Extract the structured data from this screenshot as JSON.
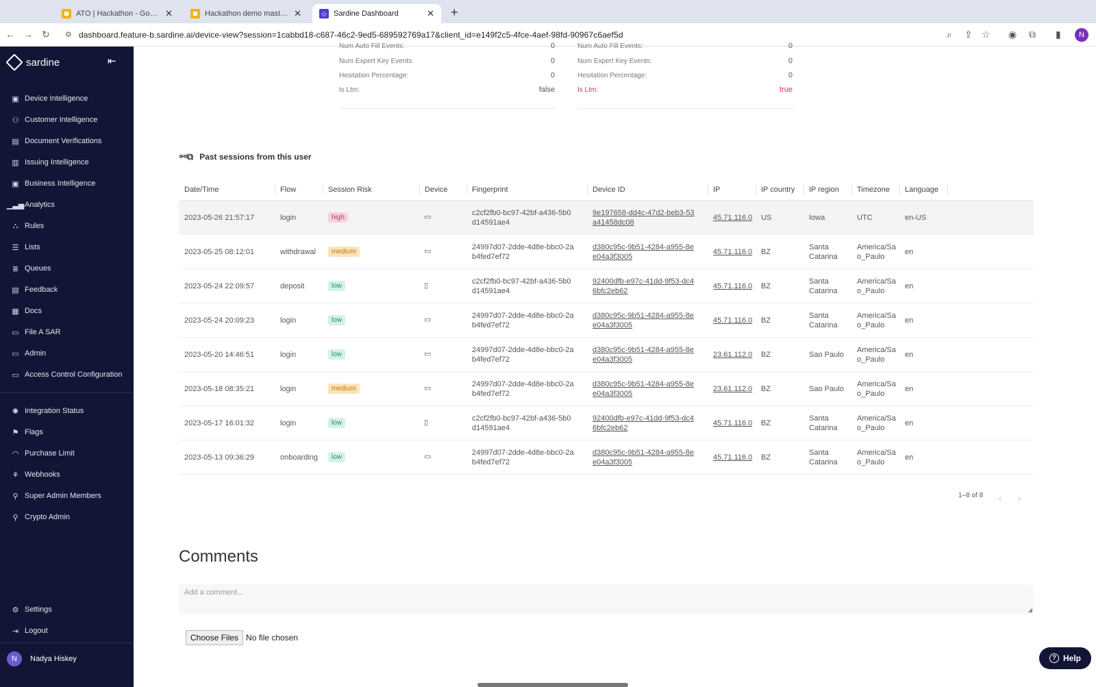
{
  "browser": {
    "tabs": [
      {
        "title": "ATO | Hackathon - Google Sli",
        "icon": "slides-icon"
      },
      {
        "title": "Hackathon demo master dec",
        "icon": "slides-icon"
      },
      {
        "title": "Sardine Dashboard",
        "icon": "sardine-icon"
      }
    ],
    "url": "dashboard.feature-b.sardine.ai/device-view?session=1cabbd18-c687-46c2-9ed5-689592769a17&client_id=e149f2c5-4fce-4aef-98fd-90967c6aef5d",
    "profile_initial": "N"
  },
  "sidebar": {
    "brand": "sardine",
    "items": [
      {
        "label": "Device Intelligence",
        "icon": "device-intelligence-icon"
      },
      {
        "label": "Customer Intelligence",
        "icon": "customer-icon"
      },
      {
        "label": "Document Verifications",
        "icon": "document-icon"
      },
      {
        "label": "Issuing Intelligence",
        "icon": "issuing-icon"
      },
      {
        "label": "Business Intelligence",
        "icon": "business-icon"
      },
      {
        "label": "Analytics",
        "icon": "analytics-icon"
      },
      {
        "label": "Rules",
        "icon": "rules-icon"
      },
      {
        "label": "Lists",
        "icon": "lists-icon"
      },
      {
        "label": "Queues",
        "icon": "queues-icon"
      },
      {
        "label": "Feedback",
        "icon": "feedback-icon"
      },
      {
        "label": "Docs",
        "icon": "docs-icon"
      },
      {
        "label": "File A SAR",
        "icon": "folder-icon"
      },
      {
        "label": "Admin",
        "icon": "folder-icon"
      },
      {
        "label": "Access Control Configuration",
        "icon": "folder-icon"
      }
    ],
    "items2": [
      {
        "label": "Integration Status",
        "icon": "integration-icon"
      },
      {
        "label": "Flags",
        "icon": "flag-icon"
      },
      {
        "label": "Purchase Limit",
        "icon": "gauge-icon"
      },
      {
        "label": "Webhooks",
        "icon": "webhook-icon"
      },
      {
        "label": "Super Admin Members",
        "icon": "user-icon"
      },
      {
        "label": "Crypto Admin",
        "icon": "user-icon"
      }
    ],
    "bottom": [
      {
        "label": "Settings",
        "icon": "gear-icon"
      },
      {
        "label": "Logout",
        "icon": "logout-icon"
      }
    ],
    "user": {
      "initial": "N",
      "name": "Nadya Hiskey"
    }
  },
  "behavior": {
    "left": [
      {
        "label": "Num Auto Fill Events:",
        "value": "0"
      },
      {
        "label": "Num Expert Key Events:",
        "value": "0"
      },
      {
        "label": "Hesitation Percentage:",
        "value": "0"
      },
      {
        "label": "Is Ltm:",
        "value": "false"
      }
    ],
    "right": [
      {
        "label": "Num Auto Fill Events:",
        "value": "0"
      },
      {
        "label": "Num Expert Key Events:",
        "value": "0"
      },
      {
        "label": "Hesitation Percentage:",
        "value": "0"
      },
      {
        "label": "Is Ltm:",
        "value": "true"
      }
    ]
  },
  "sessions": {
    "title": "Past sessions from this user",
    "columns": [
      "Date/Time",
      "Flow",
      "Session Risk",
      "Device",
      "Fingerprint",
      "Device ID",
      "IP",
      "IP country",
      "IP region",
      "Timezone",
      "Language"
    ],
    "rows": [
      {
        "datetime": "2023-05-26 21:57:17",
        "flow": "login",
        "risk": "high",
        "device": "desktop",
        "fingerprint": "c2cf2fb0-bc97-42bf-a436-5b0d14591ae4",
        "device_id": "9e197658-dd4c-47d2-beb3-53a41458dc08",
        "ip": "45.71.116.0",
        "country": "US",
        "region": "Iowa",
        "timezone": "UTC",
        "language": "en-US"
      },
      {
        "datetime": "2023-05-25 08:12:01",
        "flow": "withdrawal",
        "risk": "medium",
        "device": "desktop",
        "fingerprint": "24997d07-2dde-4d8e-bbc0-2ab4fed7ef72",
        "device_id": "d380c95c-9b51-4284-a955-8ee04a3f3005",
        "ip": "45.71.116.0",
        "country": "BZ",
        "region": "Santa Catarina",
        "timezone": "America/Sao_Paulo",
        "language": "en"
      },
      {
        "datetime": "2023-05-24 22:09:57",
        "flow": "deposit",
        "risk": "low",
        "device": "mobile",
        "fingerprint": "c2cf2fb0-bc97-42bf-a436-5b0d14591ae4",
        "device_id": "92400dfb-e97c-41dd-9f53-dc46bfc2eb62",
        "ip": "45.71.116.0",
        "country": "BZ",
        "region": "Santa Catarina",
        "timezone": "America/Sao_Paulo",
        "language": "en"
      },
      {
        "datetime": "2023-05-24 20:09:23",
        "flow": "login",
        "risk": "low",
        "device": "desktop",
        "fingerprint": "24997d07-2dde-4d8e-bbc0-2ab4fed7ef72",
        "device_id": "d380c95c-9b51-4284-a955-8ee04a3f3005",
        "ip": "45.71.116.0",
        "country": "BZ",
        "region": "Santa Catarina",
        "timezone": "America/Sao_Paulo",
        "language": "en"
      },
      {
        "datetime": "2023-05-20 14:46:51",
        "flow": "login",
        "risk": "low",
        "device": "desktop",
        "fingerprint": "24997d07-2dde-4d8e-bbc0-2ab4fed7ef72",
        "device_id": "d380c95c-9b51-4284-a955-8ee04a3f3005",
        "ip": "23.61.112.0",
        "country": "BZ",
        "region": "Sao Paulo",
        "timezone": "America/Sao_Paulo",
        "language": "en"
      },
      {
        "datetime": "2023-05-18 08:35:21",
        "flow": "login",
        "risk": "medium",
        "device": "desktop",
        "fingerprint": "24997d07-2dde-4d8e-bbc0-2ab4fed7ef72",
        "device_id": "d380c95c-9b51-4284-a955-8ee04a3f3005",
        "ip": "23.61.112.0",
        "country": "BZ",
        "region": "Sao Paulo",
        "timezone": "America/Sao_Paulo",
        "language": "en"
      },
      {
        "datetime": "2023-05-17 16:01:32",
        "flow": "login",
        "risk": "low",
        "device": "mobile",
        "fingerprint": "c2cf2fb0-bc97-42bf-a436-5b0d14591ae4",
        "device_id": "92400dfb-e97c-41dd-9f53-dc46bfc2eb62",
        "ip": "45.71.116.0",
        "country": "BZ",
        "region": "Santa Catarina",
        "timezone": "America/Sao_Paulo",
        "language": "en"
      },
      {
        "datetime": "2023-05-13 09:36:29",
        "flow": "onboarding",
        "risk": "low",
        "device": "desktop",
        "fingerprint": "24997d07-2dde-4d8e-bbc0-2ab4fed7ef72",
        "device_id": "d380c95c-9b51-4284-a955-8ee04a3f3005",
        "ip": "45.71.116.0",
        "country": "BZ",
        "region": "Santa Catarina",
        "timezone": "America/Sao_Paulo",
        "language": "en"
      }
    ],
    "pagination": "1–8 of 8"
  },
  "comments": {
    "title": "Comments",
    "placeholder": "Add a comment...",
    "choose_files": "Choose Files",
    "no_file": "No file chosen"
  },
  "help_label": "Help",
  "colors": {
    "sidebar_bg": "#121536",
    "high": "#c2334f",
    "medium": "#b77a15",
    "low": "#2d8a68"
  }
}
